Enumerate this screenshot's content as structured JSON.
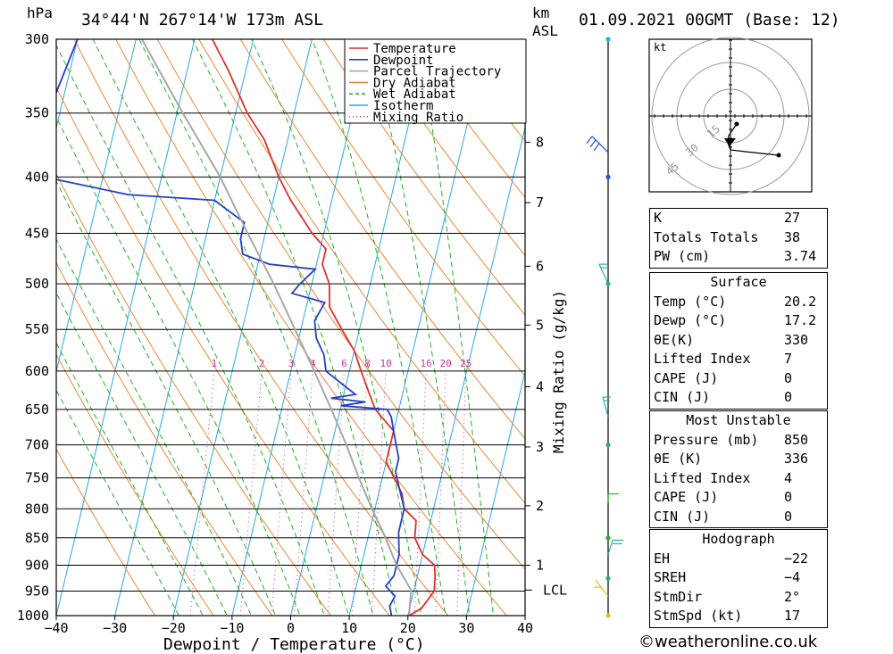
{
  "header": {
    "location": "34°44'N 267°14'W 173m ASL",
    "hpa_unit": "hPa",
    "km_unit": "km",
    "asl_unit": "ASL",
    "datetime": "01.09.2021 00GMT (Base: 12)"
  },
  "chart_data": {
    "type": "line",
    "subtype": "skew-T log-P",
    "xlabel": "Dewpoint / Temperature (°C)",
    "ylabel": "hPa",
    "right_label": "Mixing Ratio (g/kg)",
    "xlim": [
      -40,
      40
    ],
    "ylim": [
      1000,
      300
    ],
    "x_ticks": [
      -40,
      -30,
      -20,
      -10,
      0,
      10,
      20,
      30,
      40
    ],
    "x_tick_labels": [
      "−40",
      "−30",
      "−20",
      "−10",
      "0",
      "10",
      "20",
      "30",
      "40"
    ],
    "pressure_levels": [
      300,
      350,
      400,
      450,
      500,
      550,
      600,
      650,
      700,
      750,
      800,
      850,
      900,
      950,
      1000
    ],
    "km_ticks": [
      {
        "label": "1",
        "p": 900
      },
      {
        "label": "2",
        "p": 795
      },
      {
        "label": "3",
        "p": 703
      },
      {
        "label": "4",
        "p": 620
      },
      {
        "label": "5",
        "p": 545
      },
      {
        "label": "6",
        "p": 482
      },
      {
        "label": "7",
        "p": 422
      },
      {
        "label": "8",
        "p": 372
      }
    ],
    "lcl_label": "LCL",
    "lcl_p": 948,
    "mixing_ratio_labels": [
      "1",
      "2",
      "3",
      "4",
      "6",
      "8",
      "10",
      "16",
      "20",
      "25"
    ],
    "mixing_ratio_values": [
      1,
      2,
      3,
      4,
      6,
      8,
      10,
      16,
      20,
      25
    ],
    "legend": [
      "Temperature",
      "Dewpoint",
      "Parcel Trajectory",
      "Dry Adiabat",
      "Wet Adiabat",
      "Isotherm",
      "Mixing Ratio"
    ],
    "legend_position": "top-right",
    "colors": {
      "temperature": "#e0302b",
      "dewpoint": "#2440c8",
      "parcel": "#a8a8a8",
      "dry_adiabat": "#e8883a",
      "wet_adiabat": "#22b022",
      "isotherm": "#2aa8e0",
      "mixing_ratio": "#cc3399"
    },
    "series": [
      {
        "name": "Temperature",
        "points": [
          [
            1000,
            20.2
          ],
          [
            985,
            22
          ],
          [
            950,
            23.5
          ],
          [
            920,
            23
          ],
          [
            900,
            22.5
          ],
          [
            880,
            20
          ],
          [
            850,
            18
          ],
          [
            820,
            17.5
          ],
          [
            800,
            15
          ],
          [
            775,
            14
          ],
          [
            750,
            12
          ],
          [
            725,
            10
          ],
          [
            700,
            10
          ],
          [
            680,
            10
          ],
          [
            650,
            6
          ],
          [
            625,
            4
          ],
          [
            600,
            2
          ],
          [
            575,
            0
          ],
          [
            550,
            -3
          ],
          [
            525,
            -6
          ],
          [
            500,
            -7
          ],
          [
            480,
            -9
          ],
          [
            465,
            -9
          ],
          [
            450,
            -12
          ],
          [
            420,
            -17
          ],
          [
            400,
            -20
          ],
          [
            370,
            -24
          ],
          [
            350,
            -28
          ],
          [
            320,
            -33
          ],
          [
            300,
            -37
          ]
        ]
      },
      {
        "name": "Dewpoint",
        "points": [
          [
            1000,
            17.2
          ],
          [
            980,
            16.5
          ],
          [
            960,
            17
          ],
          [
            940,
            15
          ],
          [
            920,
            16
          ],
          [
            900,
            16
          ],
          [
            880,
            16
          ],
          [
            860,
            15.5
          ],
          [
            840,
            15
          ],
          [
            820,
            15
          ],
          [
            800,
            15
          ],
          [
            780,
            14
          ],
          [
            760,
            13
          ],
          [
            740,
            12
          ],
          [
            720,
            12
          ],
          [
            700,
            11
          ],
          [
            680,
            10
          ],
          [
            660,
            9
          ],
          [
            650,
            8
          ],
          [
            645,
            0
          ],
          [
            640,
            4
          ],
          [
            635,
            -2
          ],
          [
            630,
            2
          ],
          [
            620,
            0
          ],
          [
            600,
            -4
          ],
          [
            580,
            -5
          ],
          [
            560,
            -7
          ],
          [
            540,
            -8
          ],
          [
            520,
            -7
          ],
          [
            510,
            -13
          ],
          [
            500,
            -12
          ],
          [
            485,
            -10
          ],
          [
            480,
            -18
          ],
          [
            470,
            -23
          ],
          [
            455,
            -24
          ],
          [
            440,
            -24
          ],
          [
            420,
            -30
          ],
          [
            415,
            -45
          ],
          [
            400,
            -60
          ],
          [
            380,
            -60
          ],
          [
            350,
            -62
          ],
          [
            300,
            -60
          ]
        ]
      },
      {
        "name": "Parcel Trajectory",
        "points": [
          [
            1000,
            20.2
          ],
          [
            948,
            19.5
          ],
          [
            900,
            16
          ],
          [
            850,
            13
          ],
          [
            800,
            9.5
          ],
          [
            750,
            6
          ],
          [
            700,
            2.5
          ],
          [
            650,
            -1.5
          ],
          [
            600,
            -6
          ],
          [
            550,
            -11
          ],
          [
            500,
            -16.5
          ],
          [
            450,
            -23
          ],
          [
            400,
            -30
          ],
          [
            350,
            -39
          ],
          [
            300,
            -49
          ]
        ]
      }
    ]
  },
  "hodograph": {
    "unit": "kt",
    "ring_labels": [
      "15",
      "30",
      "45"
    ]
  },
  "indices": [
    {
      "label": "K",
      "value": "27"
    },
    {
      "label": "Totals Totals",
      "value": "38"
    },
    {
      "label": "PW (cm)",
      "value": "3.74"
    }
  ],
  "surface": {
    "title": "Surface",
    "rows": [
      {
        "label": "Temp (°C)",
        "value": "20.2"
      },
      {
        "label": "Dewp (°C)",
        "value": "17.2"
      },
      {
        "label": "θE(K)",
        "value": "330"
      },
      {
        "label": "Lifted Index",
        "value": "7"
      },
      {
        "label": "CAPE (J)",
        "value": "0"
      },
      {
        "label": "CIN (J)",
        "value": "0"
      }
    ]
  },
  "most_unstable": {
    "title": "Most Unstable",
    "rows": [
      {
        "label": "Pressure (mb)",
        "value": "850"
      },
      {
        "label": "θE (K)",
        "value": "336"
      },
      {
        "label": "Lifted Index",
        "value": "4"
      },
      {
        "label": "CAPE (J)",
        "value": "0"
      },
      {
        "label": "CIN (J)",
        "value": "0"
      }
    ]
  },
  "hodograph_stats": {
    "title": "Hodograph",
    "rows": [
      {
        "label": "EH",
        "value": "−22"
      },
      {
        "label": "SREH",
        "value": "−4"
      },
      {
        "label": "StmDir",
        "value": "2°"
      },
      {
        "label": "StmSpd (kt)",
        "value": "17"
      }
    ]
  },
  "credit": "©weatheronline.co.uk"
}
